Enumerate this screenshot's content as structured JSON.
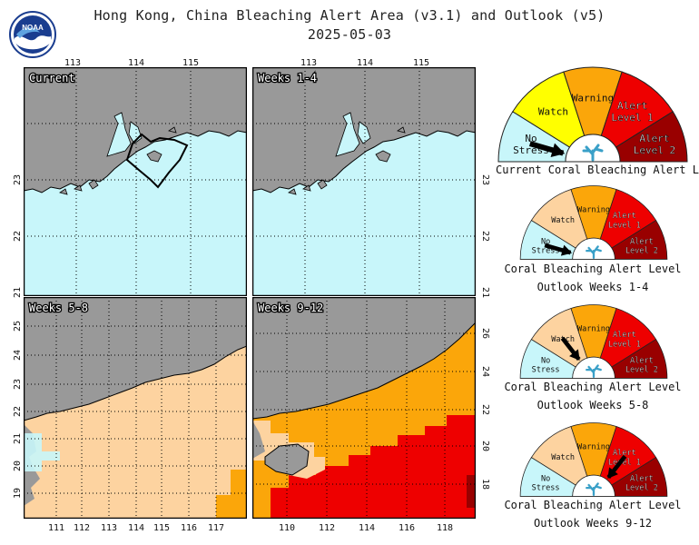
{
  "header": {
    "title": "Hong Kong, China Bleaching Alert Area (v3.1) and Outlook (v5)",
    "date": "2025-05-03",
    "logo_text": "NOAA"
  },
  "colors": {
    "land": "#999999",
    "no_stress": "#c8f6fa",
    "watch": "#ffff00",
    "watch_outlook": "#fdd3a0",
    "warning": "#fba60a",
    "alert1": "#ee0000",
    "alert2": "#990000",
    "coast": "#000000",
    "grid": "#000000"
  },
  "panels": [
    {
      "id": "current",
      "label": "Current",
      "lon_ticks": [
        "113",
        "114",
        "115"
      ],
      "lat_ticks": [
        "23",
        "22",
        "21"
      ],
      "lat_tick_side": "left",
      "lon_tick_side": "top"
    },
    {
      "id": "weeks1-4",
      "label": "Weeks 1-4",
      "lon_ticks": [
        "113",
        "114",
        "115"
      ],
      "lat_ticks": [
        "23",
        "22",
        "21"
      ],
      "lat_tick_side": "right",
      "lon_tick_side": "top"
    },
    {
      "id": "weeks5-8",
      "label": "Weeks 5-8",
      "lon_ticks": [
        "111",
        "112",
        "113",
        "114",
        "115",
        "116",
        "117"
      ],
      "lat_ticks": [
        "25",
        "24",
        "23",
        "22",
        "21",
        "20",
        "19"
      ],
      "lat_tick_side": "left",
      "lon_tick_side": "bottom"
    },
    {
      "id": "weeks9-12",
      "label": "Weeks 9-12",
      "lon_ticks": [
        "110",
        "112",
        "114",
        "116",
        "118"
      ],
      "lat_ticks": [
        "26",
        "24",
        "22",
        "20",
        "18"
      ],
      "lat_tick_side": "right",
      "lon_tick_side": "bottom"
    }
  ],
  "gauges": [
    {
      "caption1": "Current Coral Bleaching Alert Level",
      "caption2": "",
      "level": "No Stress",
      "labels": {
        "no_stress": [
          "No",
          "Stress"
        ],
        "watch": [
          "Watch"
        ],
        "warning": [
          "Warning"
        ],
        "alert1": [
          "Alert",
          "Level 1"
        ],
        "alert2": [
          "Alert",
          "Level 2"
        ]
      },
      "watch_color": "#ffff00"
    },
    {
      "caption1": "Coral Bleaching Alert Level",
      "caption2": "Outlook Weeks 1-4",
      "level": "No Stress",
      "labels": {
        "no_stress": [
          "No",
          "Stress"
        ],
        "watch": [
          "Watch"
        ],
        "warning": [
          "Warning"
        ],
        "alert1": [
          "Alert",
          "Level 1"
        ],
        "alert2": [
          "Alert",
          "Level 2"
        ]
      },
      "watch_color": "#fdd3a0"
    },
    {
      "caption1": "Coral Bleaching Alert Level",
      "caption2": "Outlook Weeks 5-8",
      "level": "Watch",
      "labels": {
        "no_stress": [
          "No",
          "Stress"
        ],
        "watch": [
          "Watch"
        ],
        "warning": [
          "Warning"
        ],
        "alert1": [
          "Alert",
          "Level 1"
        ],
        "alert2": [
          "Alert",
          "Level 2"
        ]
      },
      "watch_color": "#fdd3a0"
    },
    {
      "caption1": "Coral Bleaching Alert Level",
      "caption2": "Outlook Weeks 9-12",
      "level": "Alert Level 1",
      "labels": {
        "no_stress": [
          "No",
          "Stress"
        ],
        "watch": [
          "Watch"
        ],
        "warning": [
          "Warning"
        ],
        "alert1": [
          "Alert",
          "Level 1"
        ],
        "alert2": [
          "Alert",
          "Level 2"
        ]
      },
      "watch_color": "#fdd3a0"
    }
  ]
}
